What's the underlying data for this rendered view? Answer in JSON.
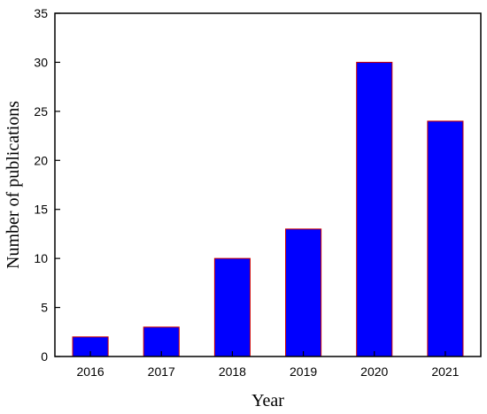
{
  "chart_data": {
    "type": "bar",
    "title": "",
    "xlabel": "Year",
    "ylabel": "Number of publications",
    "categories": [
      "2016",
      "2017",
      "2018",
      "2019",
      "2020",
      "2021"
    ],
    "values": [
      2,
      3,
      10,
      13,
      30,
      24
    ],
    "ylim": [
      0,
      35
    ],
    "yticks": [
      "0",
      "5",
      "10",
      "15",
      "20",
      "25",
      "30",
      "35"
    ],
    "grid": false,
    "legend": "none",
    "colors": {
      "bar_fill": "#0000ff",
      "bar_edge": "#cc0000",
      "axis": "#000000"
    }
  }
}
